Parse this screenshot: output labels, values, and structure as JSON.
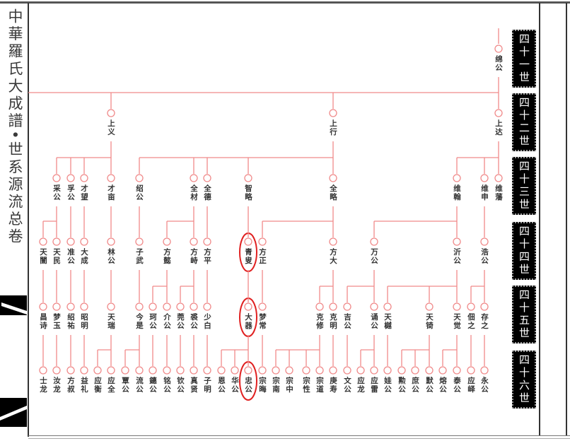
{
  "title": "中華羅氏大成譜•世系源流总卷",
  "colors": {
    "line": "#f08a8a",
    "highlight": "#e02020",
    "text": "#333333",
    "gen_box": "#000000"
  },
  "generations": [
    {
      "label": "四十一世",
      "members": [
        {
          "name": "绵公",
          "parent": null
        }
      ]
    },
    {
      "label": "四十二世",
      "members": [
        {
          "name": "上义",
          "parent": "绵公"
        },
        {
          "name": "上行",
          "parent": "绵公"
        },
        {
          "name": "上达",
          "parent": "绵公"
        }
      ]
    },
    {
      "label": "四十三世",
      "members": [
        {
          "name": "采公",
          "parent": "上义"
        },
        {
          "name": "孚公",
          "parent": "上义"
        },
        {
          "name": "才望",
          "parent": "上义"
        },
        {
          "name": "才亩",
          "parent": "上义"
        },
        {
          "name": "绍公",
          "parent": "上行"
        },
        {
          "name": "全材",
          "parent": "上行"
        },
        {
          "name": "全德",
          "parent": "上行"
        },
        {
          "name": "智略",
          "parent": "上行"
        },
        {
          "name": "全略",
          "parent": "上行"
        },
        {
          "name": "维翰",
          "parent": "上达"
        },
        {
          "name": "维申",
          "parent": "上达"
        },
        {
          "name": "维藩",
          "parent": "上达"
        }
      ]
    },
    {
      "label": "四十四世",
      "members": [
        {
          "name": "天闓",
          "parent": "采公"
        },
        {
          "name": "天民",
          "parent": "采公"
        },
        {
          "name": "准公",
          "parent": "孚公"
        },
        {
          "name": "大成",
          "parent": "才望"
        },
        {
          "name": "林公",
          "parent": "才亩"
        },
        {
          "name": "子武",
          "parent": "绍公"
        },
        {
          "name": "方懿",
          "parent": "全材"
        },
        {
          "name": "方峙",
          "parent": "全材"
        },
        {
          "name": "方平",
          "parent": "全德"
        },
        {
          "name": "青叟",
          "parent": "智略",
          "highlight": true
        },
        {
          "name": "方正",
          "parent": "全略"
        },
        {
          "name": "方大",
          "parent": "全略"
        },
        {
          "name": "万公",
          "parent": "维翰"
        },
        {
          "name": "沂公",
          "parent": "维翰"
        },
        {
          "name": "浩公",
          "parent": "维申"
        }
      ]
    },
    {
      "label": "四十五世",
      "members": [
        {
          "name": "昌诗",
          "parent": "天闓"
        },
        {
          "name": "梦玉",
          "parent": "天民"
        },
        {
          "name": "绍祐",
          "parent": "准公"
        },
        {
          "name": "昭明",
          "parent": "大成"
        },
        {
          "name": "天瑞",
          "parent": "林公"
        },
        {
          "name": "今是",
          "parent": "子武"
        },
        {
          "name": "珂公",
          "parent": "方懿"
        },
        {
          "name": "介公",
          "parent": "方懿"
        },
        {
          "name": "莞公",
          "parent": "方峙"
        },
        {
          "name": "裘公",
          "parent": "方峙"
        },
        {
          "name": "少白",
          "parent": "方平"
        },
        {
          "name": "大器",
          "parent": "青叟",
          "highlight": true
        },
        {
          "name": "梦常",
          "parent": "方正"
        },
        {
          "name": "克修",
          "parent": "方大"
        },
        {
          "name": "克明",
          "parent": "方大"
        },
        {
          "name": "吉公",
          "parent": "万公"
        },
        {
          "name": "诵公",
          "parent": "万公"
        },
        {
          "name": "天樾",
          "parent": "沂公"
        },
        {
          "name": "天锜",
          "parent": "沂公"
        },
        {
          "name": "天觉",
          "parent": "沂公"
        },
        {
          "name": "佃之",
          "parent": "浩公"
        },
        {
          "name": "存之",
          "parent": "浩公"
        }
      ]
    },
    {
      "label": "四十六世",
      "members": [
        {
          "name": "士龙",
          "parent": "昌诗"
        },
        {
          "name": "汝龙",
          "parent": "梦玉"
        },
        {
          "name": "方叔",
          "parent": "绍祐"
        },
        {
          "name": "益礼",
          "parent": "昭明"
        },
        {
          "name": "应衡",
          "parent": "天瑞"
        },
        {
          "name": "应全",
          "parent": "天瑞"
        },
        {
          "name": "覃公",
          "parent": "今是"
        },
        {
          "name": "流公",
          "parent": "今是"
        },
        {
          "name": "鏸公",
          "parent": "珂公"
        },
        {
          "name": "铭公",
          "parent": "介公"
        },
        {
          "name": "钦公",
          "parent": "莞公"
        },
        {
          "name": "真贤",
          "parent": "裘公"
        },
        {
          "name": "子明",
          "parent": "少白"
        },
        {
          "name": "恩公",
          "parent": "大器"
        },
        {
          "name": "华公",
          "parent": "大器"
        },
        {
          "name": "忠公",
          "parent": "大器",
          "highlight": true
        },
        {
          "name": "宗晦",
          "parent": "梦常"
        },
        {
          "name": "宗南",
          "parent": "克修"
        },
        {
          "name": "宗中",
          "parent": "克修"
        },
        {
          "name": "宗性",
          "parent": "克修"
        },
        {
          "name": "宗道",
          "parent": "克修"
        },
        {
          "name": "庚寿",
          "parent": "克明"
        },
        {
          "name": "文公",
          "parent": "吉公"
        },
        {
          "name": "应龙",
          "parent": "诵公"
        },
        {
          "name": "应雷",
          "parent": "诵公"
        },
        {
          "name": "娃公",
          "parent": "天樾"
        },
        {
          "name": "勲公",
          "parent": "天锜"
        },
        {
          "name": "庶公",
          "parent": "天锜"
        },
        {
          "name": "默公",
          "parent": "天锜"
        },
        {
          "name": "熔公",
          "parent": "天觉"
        },
        {
          "name": "泰公",
          "parent": "天觉"
        },
        {
          "name": "应峄",
          "parent": "佃之"
        },
        {
          "name": "永公",
          "parent": "存之"
        }
      ]
    }
  ]
}
